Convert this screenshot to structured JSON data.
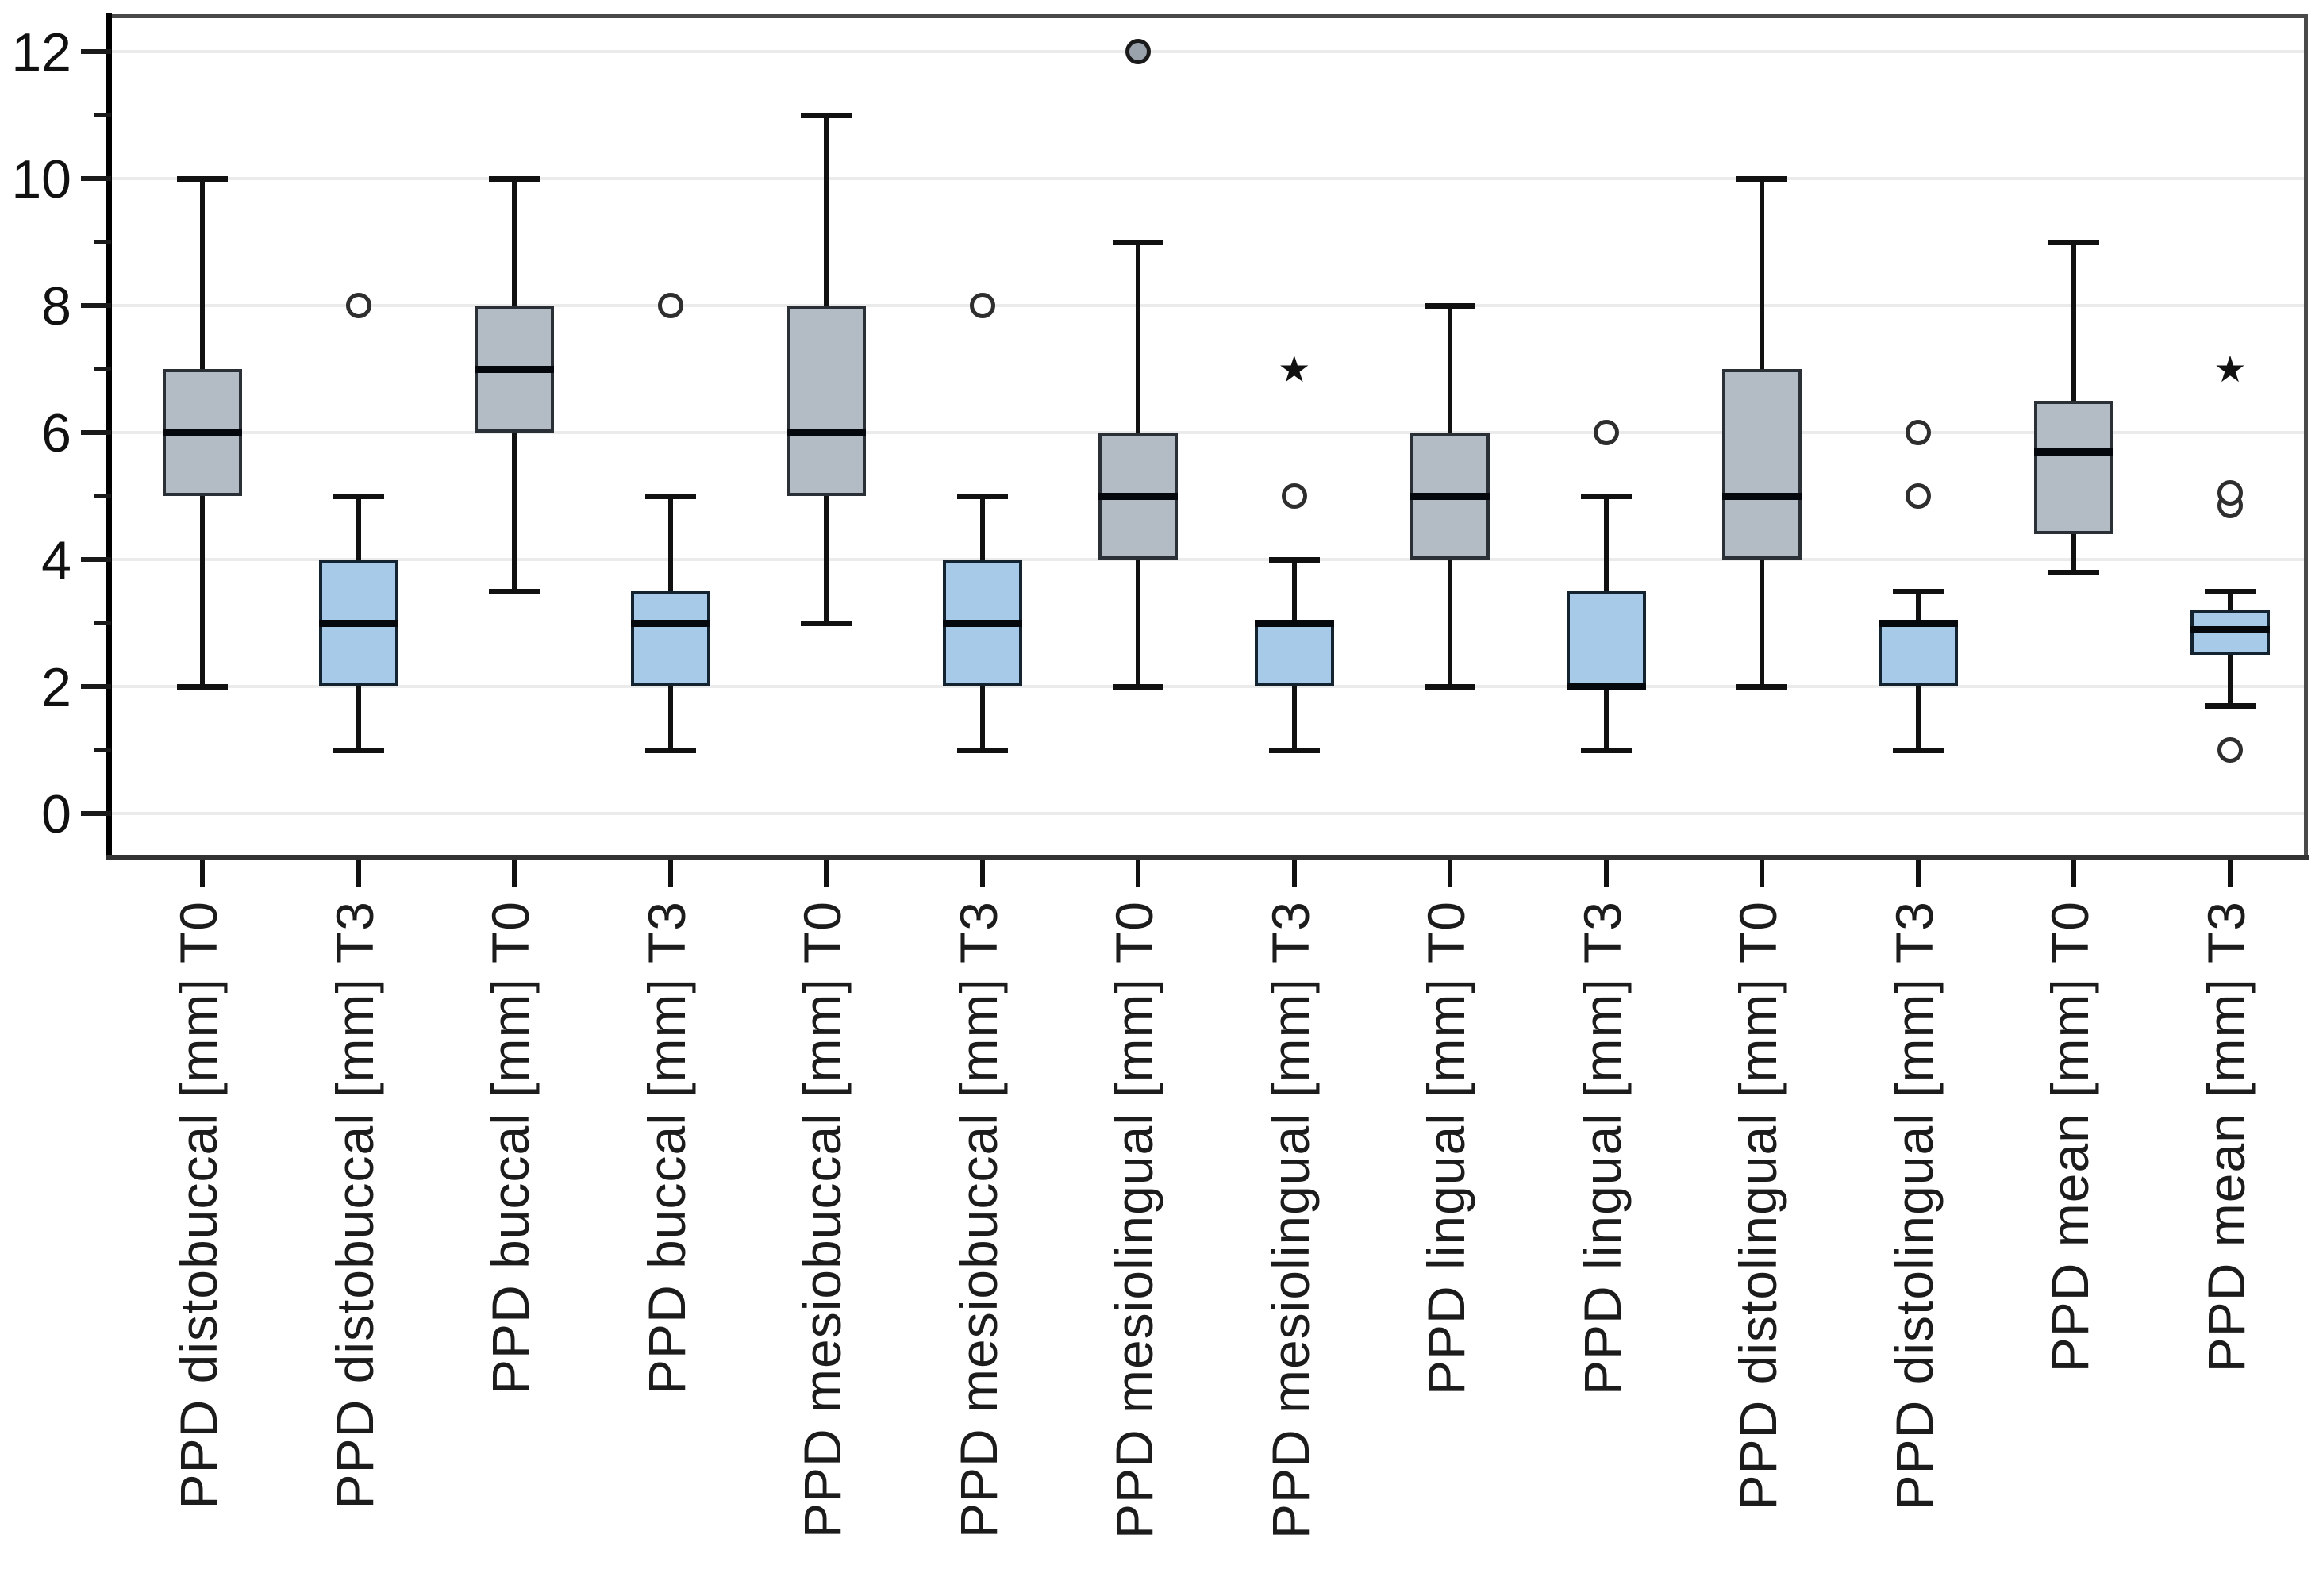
{
  "figure": {
    "type_label": "SPSS-style grouped boxplot",
    "background_color": "#ffffff",
    "colors": {
      "t0_box_fill": "#b3bcc4",
      "t3_box_fill": "#a7cae8",
      "box_edge_t0": "#2b3036",
      "box_edge_t3": "#132330",
      "median_color": "#05090d",
      "whisker_color": "#111111",
      "gridline_color": "#ebebeb",
      "axis_color": "#3d3d3d"
    }
  },
  "chart_data": {
    "type": "boxplot",
    "title": "",
    "xlabel": "",
    "ylabel": "",
    "ylim": [
      -0.75,
      12.6
    ],
    "ytick_labels": [
      "0",
      "2",
      "4",
      "6",
      "8",
      "10",
      "12"
    ],
    "yticks_major": [
      0,
      2,
      4,
      6,
      8,
      10,
      12
    ],
    "yticks_minor": [
      1,
      3,
      5,
      7,
      9,
      11
    ],
    "grid": "horizontal light gridlines at major ticks only",
    "legend_position": "none",
    "series_note": "gray boxes = T0 baseline, blue boxes = T3 follow-up; open circles = outliers, filled circle = outlier at 12, black stars = extreme outliers",
    "categories": [
      {
        "label": "PPD distobuccal [mm] T0",
        "timepoint": "T0",
        "stats": {
          "min": 2,
          "q1": 5,
          "median": 6,
          "q3": 7,
          "max": 10
        },
        "outliers": []
      },
      {
        "label": "PPD distobuccal [mm] T3",
        "timepoint": "T3",
        "stats": {
          "min": 1,
          "q1": 2,
          "median": 3,
          "q3": 4,
          "max": 5
        },
        "outliers": [
          {
            "value": 8,
            "marker": "circle"
          }
        ]
      },
      {
        "label": "PPD buccal [mm] T0",
        "timepoint": "T0",
        "stats": {
          "min": 3.5,
          "q1": 6,
          "median": 7,
          "q3": 8,
          "max": 10
        },
        "outliers": []
      },
      {
        "label": "PPD buccal [mm] T3",
        "timepoint": "T3",
        "stats": {
          "min": 1,
          "q1": 2,
          "median": 3,
          "q3": 3.5,
          "max": 5
        },
        "outliers": [
          {
            "value": 8,
            "marker": "circle"
          }
        ]
      },
      {
        "label": "PPD mesiobuccal [mm] T0",
        "timepoint": "T0",
        "stats": {
          "min": 3,
          "q1": 5,
          "median": 6,
          "q3": 8,
          "max": 11
        },
        "outliers": []
      },
      {
        "label": "PPD mesiobuccal [mm] T3",
        "timepoint": "T3",
        "stats": {
          "min": 1,
          "q1": 2,
          "median": 3,
          "q3": 4,
          "max": 5
        },
        "outliers": [
          {
            "value": 8,
            "marker": "circle"
          }
        ]
      },
      {
        "label": "PPD mesiolingual [mm] T0",
        "timepoint": "T0",
        "stats": {
          "min": 2,
          "q1": 4,
          "median": 5,
          "q3": 6,
          "max": 9
        },
        "outliers": [
          {
            "value": 12,
            "marker": "circle-filled"
          }
        ]
      },
      {
        "label": "PPD mesiolingual [mm] T3",
        "timepoint": "T3",
        "stats": {
          "min": 1,
          "q1": 2,
          "median": 3,
          "q3": 3,
          "max": 4
        },
        "outliers": [
          {
            "value": 5,
            "marker": "circle"
          },
          {
            "value": 7,
            "marker": "star"
          }
        ]
      },
      {
        "label": "PPD lingual [mm] T0",
        "timepoint": "T0",
        "stats": {
          "min": 2,
          "q1": 4,
          "median": 5,
          "q3": 6,
          "max": 8
        },
        "outliers": []
      },
      {
        "label": "PPD lingual [mm] T3",
        "timepoint": "T3",
        "stats": {
          "min": 1,
          "q1": 2,
          "median": 2,
          "q3": 3.5,
          "max": 5
        },
        "outliers": [
          {
            "value": 6,
            "marker": "circle"
          }
        ]
      },
      {
        "label": "PPD distolingual [mm] T0",
        "timepoint": "T0",
        "stats": {
          "min": 2,
          "q1": 4,
          "median": 5,
          "q3": 7,
          "max": 10
        },
        "outliers": []
      },
      {
        "label": "PPD distolingual [mm] T3",
        "timepoint": "T3",
        "stats": {
          "min": 1,
          "q1": 2,
          "median": 3,
          "q3": 3,
          "max": 3.5
        },
        "outliers": [
          {
            "value": 5,
            "marker": "circle"
          },
          {
            "value": 6,
            "marker": "circle"
          }
        ]
      },
      {
        "label": "PPD mean [mm] T0",
        "timepoint": "T0",
        "stats": {
          "min": 3.8,
          "q1": 4.4,
          "median": 5.7,
          "q3": 6.5,
          "max": 9
        },
        "outliers": []
      },
      {
        "label": "PPD mean [mm] T3",
        "timepoint": "T3",
        "stats": {
          "min": 1.7,
          "q1": 2.5,
          "median": 2.9,
          "q3": 3.2,
          "max": 3.5
        },
        "outliers": [
          {
            "value": 4.85,
            "marker": "circle"
          },
          {
            "value": 5.05,
            "marker": "circle"
          },
          {
            "value": 1,
            "marker": "circle"
          },
          {
            "value": 7,
            "marker": "star"
          }
        ]
      }
    ]
  }
}
